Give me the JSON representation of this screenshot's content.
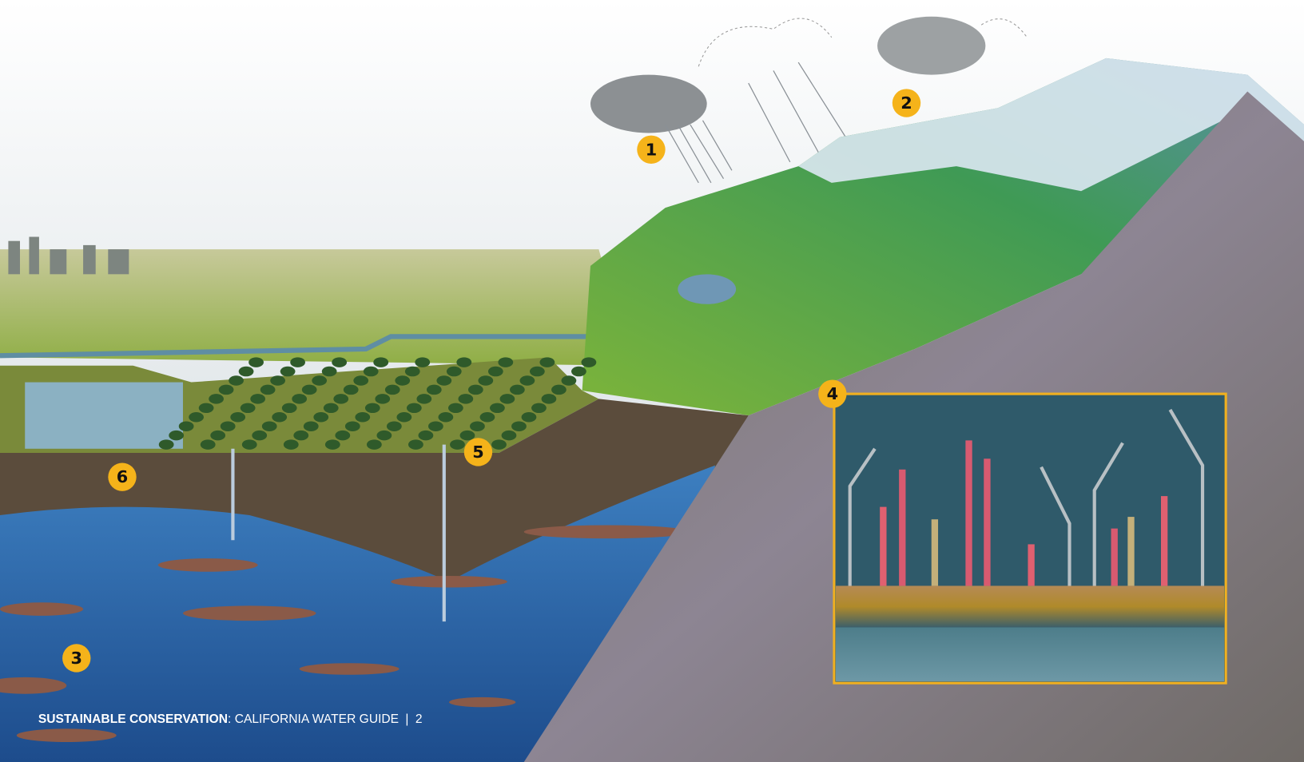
{
  "markers": [
    {
      "label": "1"
    },
    {
      "label": "2"
    },
    {
      "label": "3"
    },
    {
      "label": "4"
    },
    {
      "label": "5"
    },
    {
      "label": "6"
    }
  ],
  "footer": {
    "brand": "SUSTAINABLE CONSERVATION",
    "title": ": CALIFORNIA WATER GUIDE",
    "separator": "|",
    "page": "2"
  }
}
